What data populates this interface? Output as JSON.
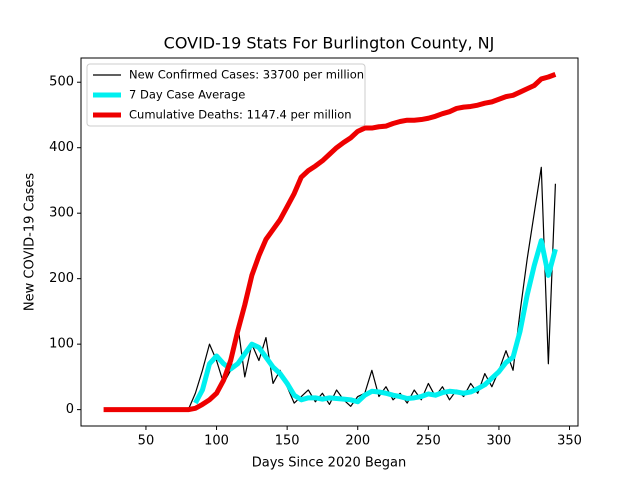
{
  "chart_data": {
    "type": "line",
    "title": "COVID-19 Stats For Burlington County, NJ",
    "x_label": "Days Since 2020 Began",
    "y_label": "New COVID-19 Cases",
    "x": [
      20,
      25,
      30,
      35,
      40,
      45,
      50,
      55,
      60,
      65,
      70,
      75,
      80,
      85,
      90,
      95,
      100,
      105,
      110,
      115,
      120,
      125,
      130,
      135,
      140,
      145,
      150,
      155,
      160,
      165,
      170,
      175,
      180,
      185,
      190,
      195,
      200,
      205,
      210,
      215,
      220,
      225,
      230,
      235,
      240,
      245,
      250,
      255,
      260,
      265,
      270,
      275,
      280,
      285,
      290,
      295,
      300,
      305,
      310,
      315,
      320,
      325,
      330,
      335,
      340
    ],
    "series": [
      {
        "name": "New Confirmed Cases: 33700 per million",
        "color": "#000000",
        "values": [
          null,
          null,
          null,
          null,
          null,
          null,
          null,
          null,
          null,
          null,
          null,
          null,
          0,
          25,
          60,
          100,
          75,
          40,
          60,
          130,
          50,
          100,
          75,
          110,
          40,
          60,
          35,
          10,
          20,
          30,
          12,
          25,
          8,
          30,
          15,
          5,
          20,
          25,
          60,
          20,
          35,
          15,
          25,
          10,
          30,
          15,
          40,
          20,
          35,
          15,
          30,
          20,
          40,
          25,
          55,
          35,
          60,
          90,
          60,
          150,
          230,
          300,
          370,
          70,
          345
        ]
      },
      {
        "name": "7 Day Case Average",
        "color": "#00f0f0",
        "values": [
          null,
          null,
          null,
          null,
          null,
          null,
          null,
          null,
          null,
          null,
          null,
          null,
          null,
          10,
          30,
          70,
          82,
          70,
          62,
          70,
          85,
          100,
          95,
          80,
          65,
          55,
          40,
          22,
          15,
          18,
          18,
          16,
          18,
          17,
          16,
          15,
          12,
          22,
          28,
          27,
          25,
          22,
          20,
          17,
          18,
          20,
          24,
          22,
          26,
          28,
          27,
          25,
          27,
          32,
          38,
          48,
          58,
          72,
          80,
          120,
          175,
          220,
          258,
          205,
          245
        ]
      },
      {
        "name": "Cumulative Deaths: 1147.4 per million",
        "color": "#ee0000",
        "values": [
          0,
          0,
          0,
          0,
          0,
          0,
          0,
          0,
          0,
          0,
          0,
          0,
          0,
          2,
          8,
          15,
          25,
          45,
          75,
          120,
          160,
          205,
          235,
          260,
          275,
          290,
          310,
          330,
          355,
          365,
          372,
          380,
          390,
          400,
          408,
          415,
          425,
          430,
          430,
          432,
          433,
          437,
          440,
          442,
          442,
          443,
          445,
          448,
          452,
          455,
          460,
          462,
          463,
          465,
          468,
          470,
          474,
          478,
          480,
          485,
          490,
          495,
          505,
          508,
          512
        ]
      }
    ],
    "xlim": [
      4,
      356
    ],
    "xticks": [
      50,
      100,
      150,
      200,
      250,
      300,
      350
    ],
    "ylim": [
      -25,
      537
    ],
    "yticks": [
      0,
      100,
      200,
      300,
      400,
      500
    ],
    "grid": false,
    "legend": "upper left"
  }
}
